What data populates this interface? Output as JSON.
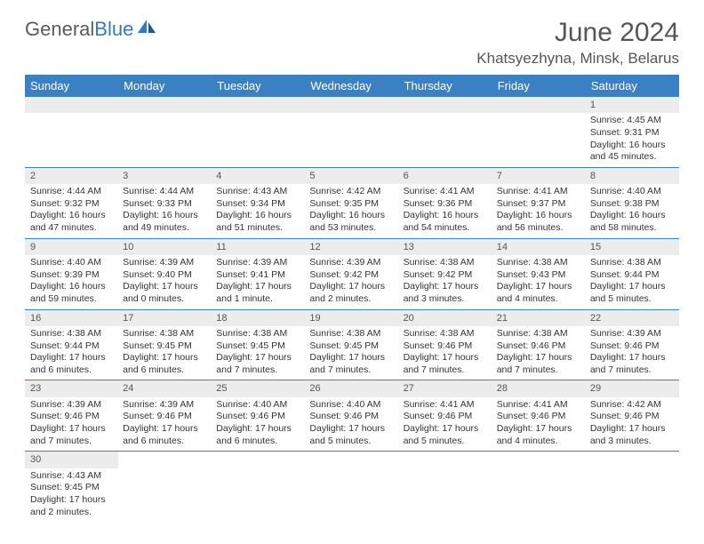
{
  "logo": {
    "word1": "General",
    "word2": "Blue"
  },
  "title": "June 2024",
  "location": "Khatsyezhyna, Minsk, Belarus",
  "colors": {
    "header_bg": "#3a80c3",
    "header_fg": "#ffffff",
    "daynum_bg": "#ececec",
    "row_border": "#3a80c3",
    "text": "#333333",
    "title": "#555555"
  },
  "weekdays": [
    "Sunday",
    "Monday",
    "Tuesday",
    "Wednesday",
    "Thursday",
    "Friday",
    "Saturday"
  ],
  "weeks": [
    [
      null,
      null,
      null,
      null,
      null,
      null,
      {
        "n": "1",
        "sunrise": "Sunrise: 4:45 AM",
        "sunset": "Sunset: 9:31 PM",
        "daylight": "Daylight: 16 hours and 45 minutes."
      }
    ],
    [
      {
        "n": "2",
        "sunrise": "Sunrise: 4:44 AM",
        "sunset": "Sunset: 9:32 PM",
        "daylight": "Daylight: 16 hours and 47 minutes."
      },
      {
        "n": "3",
        "sunrise": "Sunrise: 4:44 AM",
        "sunset": "Sunset: 9:33 PM",
        "daylight": "Daylight: 16 hours and 49 minutes."
      },
      {
        "n": "4",
        "sunrise": "Sunrise: 4:43 AM",
        "sunset": "Sunset: 9:34 PM",
        "daylight": "Daylight: 16 hours and 51 minutes."
      },
      {
        "n": "5",
        "sunrise": "Sunrise: 4:42 AM",
        "sunset": "Sunset: 9:35 PM",
        "daylight": "Daylight: 16 hours and 53 minutes."
      },
      {
        "n": "6",
        "sunrise": "Sunrise: 4:41 AM",
        "sunset": "Sunset: 9:36 PM",
        "daylight": "Daylight: 16 hours and 54 minutes."
      },
      {
        "n": "7",
        "sunrise": "Sunrise: 4:41 AM",
        "sunset": "Sunset: 9:37 PM",
        "daylight": "Daylight: 16 hours and 56 minutes."
      },
      {
        "n": "8",
        "sunrise": "Sunrise: 4:40 AM",
        "sunset": "Sunset: 9:38 PM",
        "daylight": "Daylight: 16 hours and 58 minutes."
      }
    ],
    [
      {
        "n": "9",
        "sunrise": "Sunrise: 4:40 AM",
        "sunset": "Sunset: 9:39 PM",
        "daylight": "Daylight: 16 hours and 59 minutes."
      },
      {
        "n": "10",
        "sunrise": "Sunrise: 4:39 AM",
        "sunset": "Sunset: 9:40 PM",
        "daylight": "Daylight: 17 hours and 0 minutes."
      },
      {
        "n": "11",
        "sunrise": "Sunrise: 4:39 AM",
        "sunset": "Sunset: 9:41 PM",
        "daylight": "Daylight: 17 hours and 1 minute."
      },
      {
        "n": "12",
        "sunrise": "Sunrise: 4:39 AM",
        "sunset": "Sunset: 9:42 PM",
        "daylight": "Daylight: 17 hours and 2 minutes."
      },
      {
        "n": "13",
        "sunrise": "Sunrise: 4:38 AM",
        "sunset": "Sunset: 9:42 PM",
        "daylight": "Daylight: 17 hours and 3 minutes."
      },
      {
        "n": "14",
        "sunrise": "Sunrise: 4:38 AM",
        "sunset": "Sunset: 9:43 PM",
        "daylight": "Daylight: 17 hours and 4 minutes."
      },
      {
        "n": "15",
        "sunrise": "Sunrise: 4:38 AM",
        "sunset": "Sunset: 9:44 PM",
        "daylight": "Daylight: 17 hours and 5 minutes."
      }
    ],
    [
      {
        "n": "16",
        "sunrise": "Sunrise: 4:38 AM",
        "sunset": "Sunset: 9:44 PM",
        "daylight": "Daylight: 17 hours and 6 minutes."
      },
      {
        "n": "17",
        "sunrise": "Sunrise: 4:38 AM",
        "sunset": "Sunset: 9:45 PM",
        "daylight": "Daylight: 17 hours and 6 minutes."
      },
      {
        "n": "18",
        "sunrise": "Sunrise: 4:38 AM",
        "sunset": "Sunset: 9:45 PM",
        "daylight": "Daylight: 17 hours and 7 minutes."
      },
      {
        "n": "19",
        "sunrise": "Sunrise: 4:38 AM",
        "sunset": "Sunset: 9:45 PM",
        "daylight": "Daylight: 17 hours and 7 minutes."
      },
      {
        "n": "20",
        "sunrise": "Sunrise: 4:38 AM",
        "sunset": "Sunset: 9:46 PM",
        "daylight": "Daylight: 17 hours and 7 minutes."
      },
      {
        "n": "21",
        "sunrise": "Sunrise: 4:38 AM",
        "sunset": "Sunset: 9:46 PM",
        "daylight": "Daylight: 17 hours and 7 minutes."
      },
      {
        "n": "22",
        "sunrise": "Sunrise: 4:39 AM",
        "sunset": "Sunset: 9:46 PM",
        "daylight": "Daylight: 17 hours and 7 minutes."
      }
    ],
    [
      {
        "n": "23",
        "sunrise": "Sunrise: 4:39 AM",
        "sunset": "Sunset: 9:46 PM",
        "daylight": "Daylight: 17 hours and 7 minutes."
      },
      {
        "n": "24",
        "sunrise": "Sunrise: 4:39 AM",
        "sunset": "Sunset: 9:46 PM",
        "daylight": "Daylight: 17 hours and 6 minutes."
      },
      {
        "n": "25",
        "sunrise": "Sunrise: 4:40 AM",
        "sunset": "Sunset: 9:46 PM",
        "daylight": "Daylight: 17 hours and 6 minutes."
      },
      {
        "n": "26",
        "sunrise": "Sunrise: 4:40 AM",
        "sunset": "Sunset: 9:46 PM",
        "daylight": "Daylight: 17 hours and 5 minutes."
      },
      {
        "n": "27",
        "sunrise": "Sunrise: 4:41 AM",
        "sunset": "Sunset: 9:46 PM",
        "daylight": "Daylight: 17 hours and 5 minutes."
      },
      {
        "n": "28",
        "sunrise": "Sunrise: 4:41 AM",
        "sunset": "Sunset: 9:46 PM",
        "daylight": "Daylight: 17 hours and 4 minutes."
      },
      {
        "n": "29",
        "sunrise": "Sunrise: 4:42 AM",
        "sunset": "Sunset: 9:46 PM",
        "daylight": "Daylight: 17 hours and 3 minutes."
      }
    ],
    [
      {
        "n": "30",
        "sunrise": "Sunrise: 4:43 AM",
        "sunset": "Sunset: 9:45 PM",
        "daylight": "Daylight: 17 hours and 2 minutes."
      },
      null,
      null,
      null,
      null,
      null,
      null
    ]
  ]
}
